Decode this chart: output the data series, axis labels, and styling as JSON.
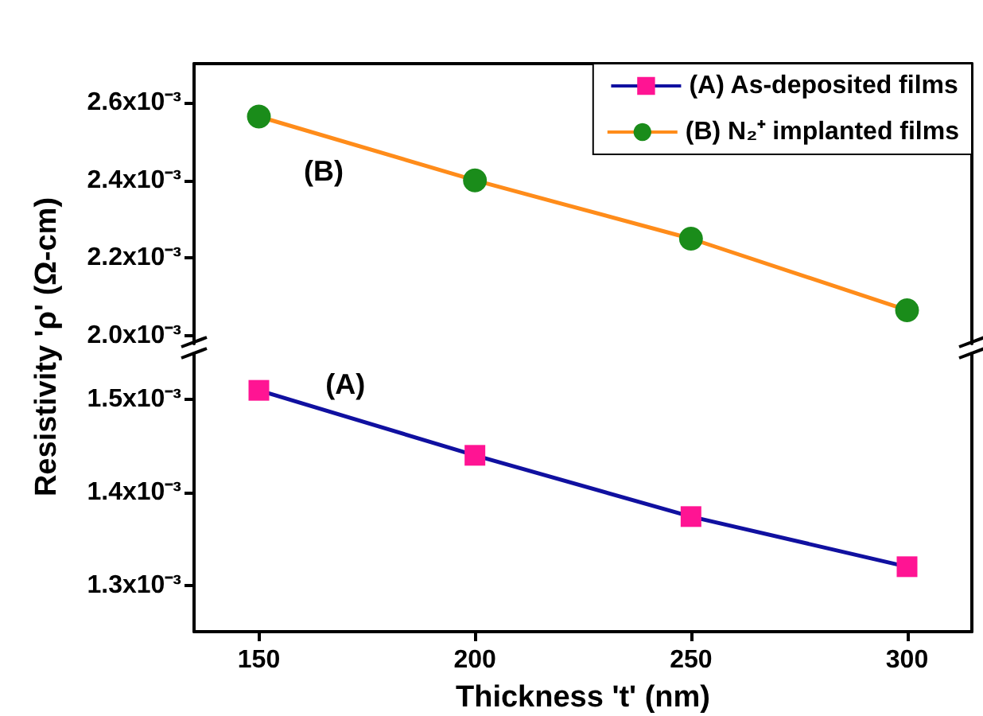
{
  "chart_data": [
    {
      "type": "line",
      "x": [
        150,
        200,
        250,
        300
      ],
      "xlim": [
        135,
        315
      ],
      "ylim": [
        0.00198,
        0.0027
      ],
      "yticks": [
        {
          "value": 0.002,
          "label": "2.0x10⁻³"
        },
        {
          "value": 0.0022,
          "label": "2.2x10⁻³"
        },
        {
          "value": 0.0024,
          "label": "2.4x10⁻³"
        },
        {
          "value": 0.0026,
          "label": "2.6x10⁻³"
        }
      ],
      "series": [
        {
          "name": "(B) N₂⁺ implanted films",
          "color": "#ff8c1a",
          "colors": [
            "#1a8c1a",
            "#1a8c1a",
            "#1a8c1a",
            "#1a8c1a"
          ],
          "values": [
            0.002564,
            0.0024,
            0.00225,
            0.002066
          ]
        }
      ],
      "marker": "circle",
      "tick_labels": "y",
      "legend": "top right",
      "grid": false,
      "annotations": [
        "(B)"
      ]
    },
    {
      "type": "line",
      "x": [
        150,
        200,
        250,
        300
      ],
      "xlim": [
        135,
        315
      ],
      "xticks": [
        150,
        200,
        250,
        300
      ],
      "ylim": [
        0.00125,
        0.00155
      ],
      "yticks": [
        {
          "value": 0.0013,
          "label": "1.3x10⁻³"
        },
        {
          "value": 0.0014,
          "label": "1.4x10⁻³"
        },
        {
          "value": 0.0015,
          "label": "1.5x10⁻³"
        }
      ],
      "series": [
        {
          "name": "(A) As-deposited films",
          "color": "#1010a0",
          "colors": [
            "#ff1493",
            "#ff1493",
            "#ff1493",
            "#ff1493"
          ],
          "values": [
            0.00151,
            0.00144,
            0.001374,
            0.00132
          ]
        }
      ],
      "marker": "square",
      "legend": "top right",
      "grid": false,
      "xlabel": "Thickness 't' (nm)",
      "ylabel": "Resistivity 'ρ' (Ω-cm)",
      "annotations": [
        "(A)"
      ]
    }
  ]
}
